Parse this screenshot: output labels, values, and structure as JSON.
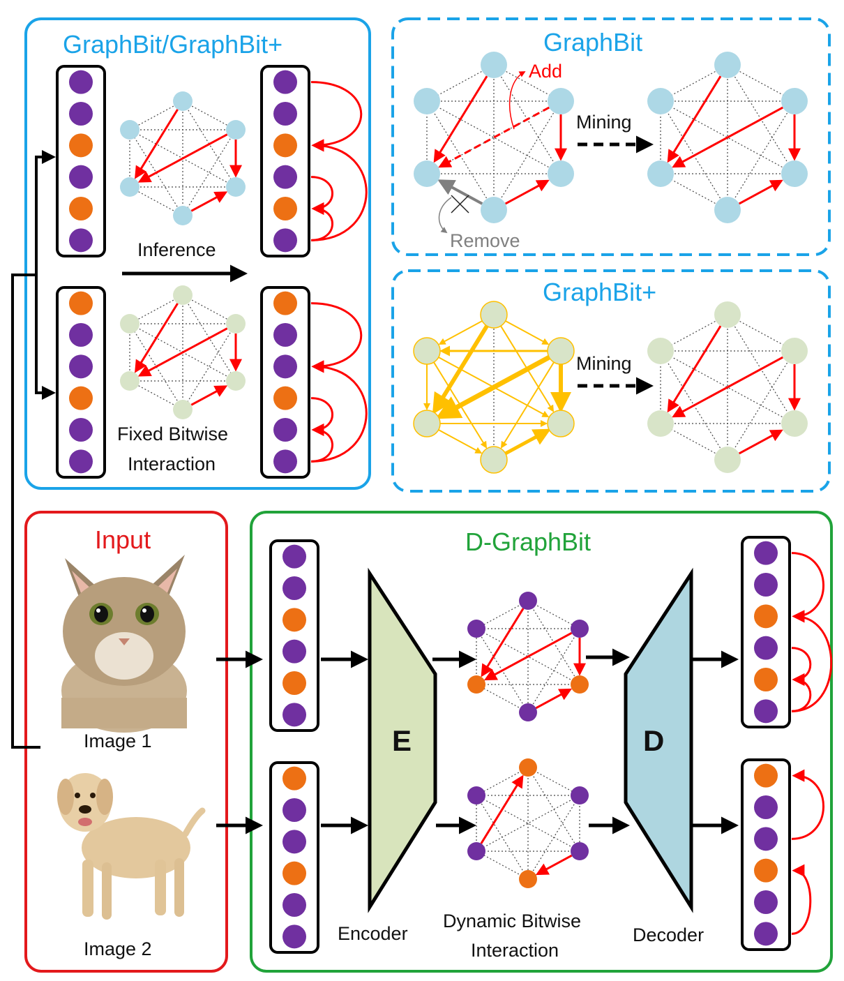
{
  "panels": {
    "graphbit_combo": {
      "title": "GraphBit/GraphBit+",
      "inference": "Inference",
      "fixed_line1": "Fixed Bitwise",
      "fixed_line2": "Interaction"
    },
    "graphbit": {
      "title": "GraphBit",
      "add": "Add",
      "remove": "Remove",
      "mining": "Mining"
    },
    "graphbit_plus": {
      "title": "GraphBit+",
      "mining": "Mining"
    },
    "input": {
      "title": "Input",
      "image1": "Image 1",
      "image2": "Image 2"
    },
    "dgraphbit": {
      "title": "D-GraphBit",
      "encoder_letter": "E",
      "decoder_letter": "D",
      "encoder": "Encoder",
      "decoder": "Decoder",
      "dynamic_line1": "Dynamic Bitwise",
      "dynamic_line2": "Interaction"
    }
  },
  "bit_codes": {
    "image1": [
      "purple",
      "purple",
      "orange",
      "purple",
      "orange",
      "purple"
    ],
    "image2": [
      "orange",
      "purple",
      "purple",
      "orange",
      "purple",
      "purple"
    ]
  },
  "colors": {
    "purple": "#7030a0",
    "orange": "#ed7014",
    "blue_node": "#add8e6",
    "green_node": "#d8e4c8",
    "red_edge": "#ff0000",
    "yellow_edge": "#ffc000",
    "panel_blue": "#1aa3e8",
    "panel_red": "#e3191c",
    "panel_green": "#21a33a",
    "encoder_fill": "#d8e4bc",
    "decoder_fill": "#aed6e0"
  },
  "images": {
    "image1": "cat-photo",
    "image2": "dog-photo"
  }
}
